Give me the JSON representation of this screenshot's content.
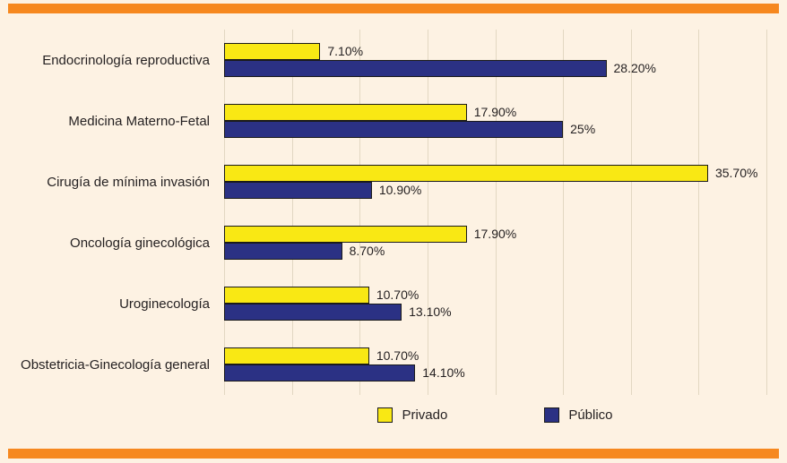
{
  "colors": {
    "background": "#fdf2e3",
    "stripe": "#f6881f",
    "bar_border": "#1a1a1a",
    "gridline": "#e2d7c2",
    "text": "#231f20"
  },
  "legend": {
    "privado_label": "Privado",
    "publico_label": "Público"
  },
  "chart_data": {
    "type": "bar",
    "orientation": "horizontal",
    "title": "",
    "xlabel": "",
    "ylabel": "",
    "xlim": [
      0,
      40
    ],
    "grid_step": 5,
    "grid": true,
    "legend_position": "bottom",
    "categories": [
      "Endocrinología reproductiva",
      "Medicina Materno-Fetal",
      "Cirugía de mínima invasión",
      "Oncología ginecológica",
      "Uroginecología",
      "Obstetricia-Ginecología general"
    ],
    "series": [
      {
        "name": "Privado",
        "color": "#f9e814",
        "values": [
          7.1,
          17.9,
          35.7,
          17.9,
          10.7,
          10.7
        ],
        "labels": [
          "7.10%",
          "17.90%",
          "35.70%",
          "17.90%",
          "10.70%",
          "10.70%"
        ]
      },
      {
        "name": "Público",
        "color": "#2b3184",
        "values": [
          28.2,
          25,
          10.9,
          8.7,
          13.1,
          14.1
        ],
        "labels": [
          "28.20%",
          "25%",
          "10.90%",
          "8.70%",
          "13.10%",
          "14.10%"
        ]
      }
    ]
  }
}
